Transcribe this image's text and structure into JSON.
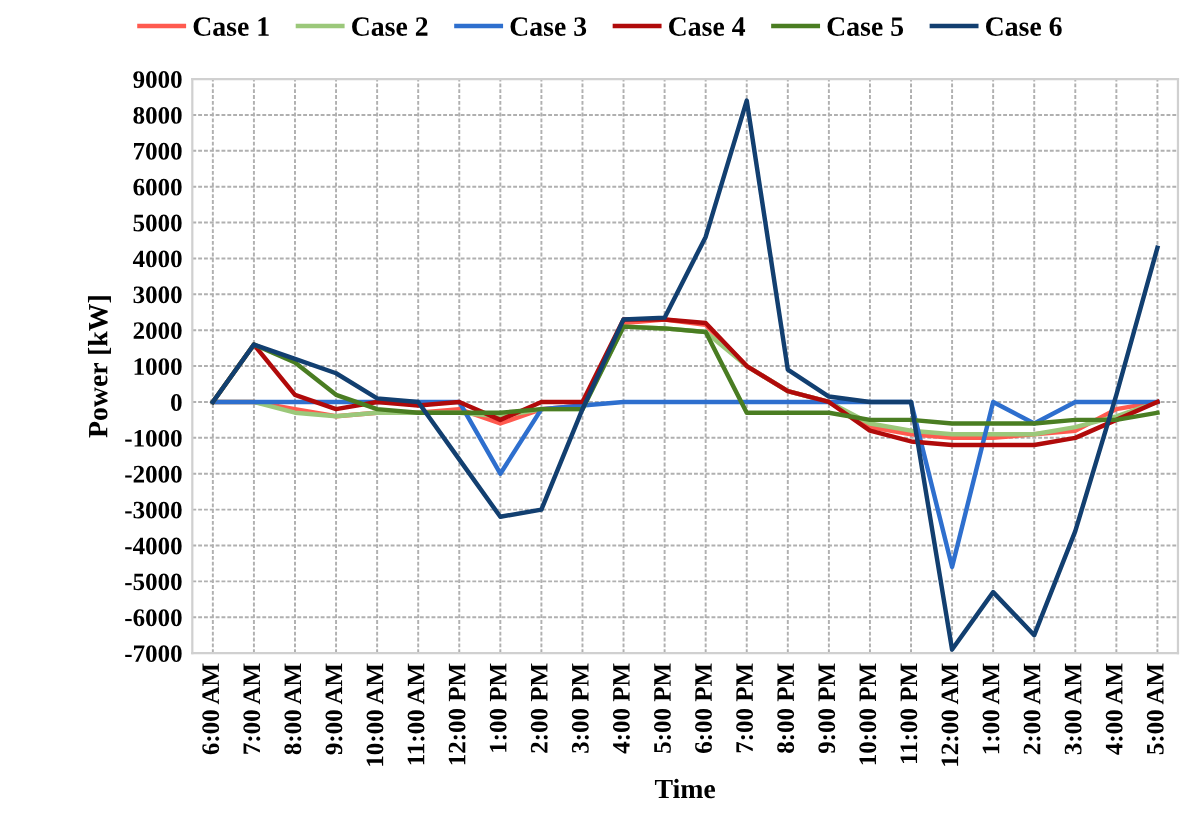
{
  "chart_data": {
    "type": "line",
    "xlabel": "Time",
    "ylabel": "Power [kW]",
    "categories": [
      "6:00 AM",
      "7:00 AM",
      "8:00 AM",
      "9:00 AM",
      "10:00 AM",
      "11:00 AM",
      "12:00 PM",
      "1:00 PM",
      "2:00 PM",
      "3:00 PM",
      "4:00 PM",
      "5:00 PM",
      "6:00 PM",
      "7:00 PM",
      "8:00 PM",
      "9:00 PM",
      "10:00 PM",
      "11:00 PM",
      "12:00 AM",
      "1:00 AM",
      "2:00 AM",
      "3:00 AM",
      "4:00 AM",
      "5:00 AM"
    ],
    "series": [
      {
        "name": "Case 1",
        "color": "#ff5a4f",
        "values": [
          0,
          0,
          -200,
          -400,
          -300,
          -300,
          -200,
          -600,
          -200,
          -100,
          2200,
          2300,
          2150,
          1000,
          300,
          0,
          -700,
          -900,
          -1000,
          -1000,
          -900,
          -800,
          -200,
          0
        ]
      },
      {
        "name": "Case 2",
        "color": "#9bc87a",
        "values": [
          0,
          0,
          -300,
          -400,
          -300,
          -300,
          -300,
          -400,
          -200,
          -200,
          2100,
          2050,
          1950,
          1000,
          300,
          0,
          -600,
          -800,
          -900,
          -900,
          -900,
          -700,
          -400,
          0
        ]
      },
      {
        "name": "Case 3",
        "color": "#2e6fce",
        "values": [
          0,
          0,
          0,
          0,
          0,
          0,
          0,
          -2000,
          -200,
          -100,
          0,
          0,
          0,
          0,
          0,
          0,
          0,
          0,
          -4600,
          0,
          -600,
          0,
          0,
          0
        ]
      },
      {
        "name": "Case 4",
        "color": "#b00a0a",
        "values": [
          0,
          1600,
          200,
          -200,
          0,
          -100,
          0,
          -500,
          0,
          0,
          2300,
          2300,
          2200,
          1000,
          300,
          0,
          -800,
          -1100,
          -1200,
          -1200,
          -1200,
          -1000,
          -500,
          0
        ]
      },
      {
        "name": "Case 5",
        "color": "#4a7d22",
        "values": [
          0,
          1600,
          1100,
          200,
          -200,
          -300,
          -300,
          -300,
          -200,
          -200,
          2100,
          2050,
          1950,
          -300,
          -300,
          -300,
          -500,
          -500,
          -600,
          -600,
          -600,
          -500,
          -500,
          -300
        ]
      },
      {
        "name": "Case 6",
        "color": "#123f70",
        "values": [
          0,
          1600,
          1200,
          800,
          100,
          0,
          -1600,
          -3200,
          -3000,
          -200,
          2300,
          2350,
          4600,
          8400,
          900,
          150,
          0,
          0,
          -6900,
          -5300,
          -6500,
          -3600,
          200,
          4300
        ]
      }
    ],
    "ylim": [
      -7000,
      9000
    ],
    "yticks": [
      -7000,
      -6000,
      -5000,
      -4000,
      -3000,
      -2000,
      -1000,
      0,
      1000,
      2000,
      3000,
      4000,
      5000,
      6000,
      7000,
      8000,
      9000
    ],
    "grid": true,
    "legend": "top",
    "marker": "none",
    "line_style": "solid"
  }
}
